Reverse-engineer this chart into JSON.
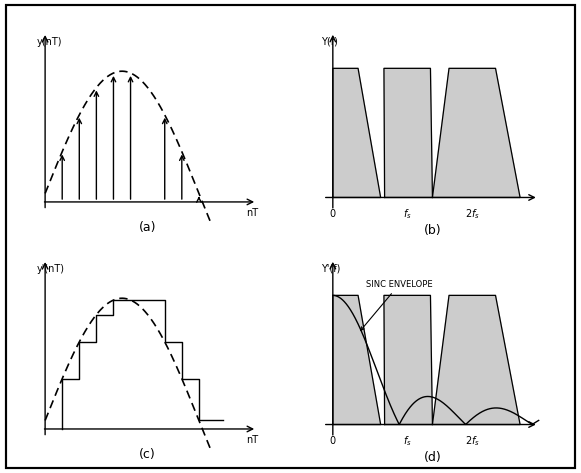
{
  "fig_width": 5.81,
  "fig_height": 4.73,
  "dpi": 100,
  "bg_color": "#ffffff",
  "panel_a_label": "(a)",
  "panel_b_label": "(b)",
  "panel_c_label": "(c)",
  "panel_d_label": "(d)",
  "sinc_label": "SINC ENVELOPE",
  "ylabel_a": "y(nT)",
  "ylabel_c": "y'(nT)",
  "ylabel_b": "Y(f)",
  "ylabel_d": "Y'(f)",
  "xlabel_nt": "nT",
  "gray_fill": "#cccccc",
  "gray_fill_alpha": 1.0,
  "line_color": "#000000",
  "lw_axis": 1.0,
  "lw_line": 1.0,
  "lw_dash": 1.2
}
